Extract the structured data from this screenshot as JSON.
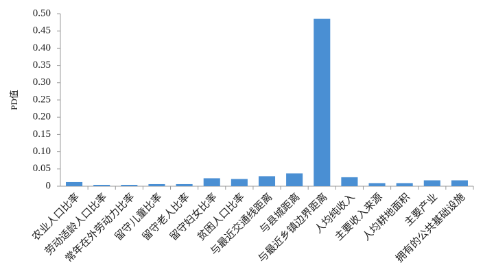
{
  "chart_data": {
    "type": "bar",
    "y_label": "PD值",
    "categories": [
      "农业人口比率",
      "劳动适龄人口比率",
      "常年在外劳动力比率",
      "留守儿童比率",
      "留守老人比率",
      "留守妇女比率",
      "贫困人口比率",
      "与最近交通线距离",
      "与县城距离",
      "与最近乡镇边界距离",
      "人均纯收入",
      "主要收入来源",
      "人均耕地面积",
      "主要产业",
      "拥有的公共基础设施"
    ],
    "values": [
      0.012,
      0.004,
      0.004,
      0.006,
      0.006,
      0.023,
      0.021,
      0.029,
      0.037,
      0.485,
      0.026,
      0.009,
      0.009,
      0.017,
      0.017
    ],
    "color": "#4a8fd3",
    "ylim": [
      0,
      0.5
    ],
    "yticks": [
      0,
      0.05,
      {
        "value": 0.1,
        "label": "0.10"
      },
      0.15,
      {
        "value": 0.2,
        "label": "0.20"
      },
      0.25,
      {
        "value": 0.3,
        "label": "0.30"
      },
      0.35,
      {
        "value": 0.4,
        "label": "0.40"
      },
      0.45,
      {
        "value": 0.5,
        "label": "0.50"
      }
    ],
    "grid": false
  }
}
